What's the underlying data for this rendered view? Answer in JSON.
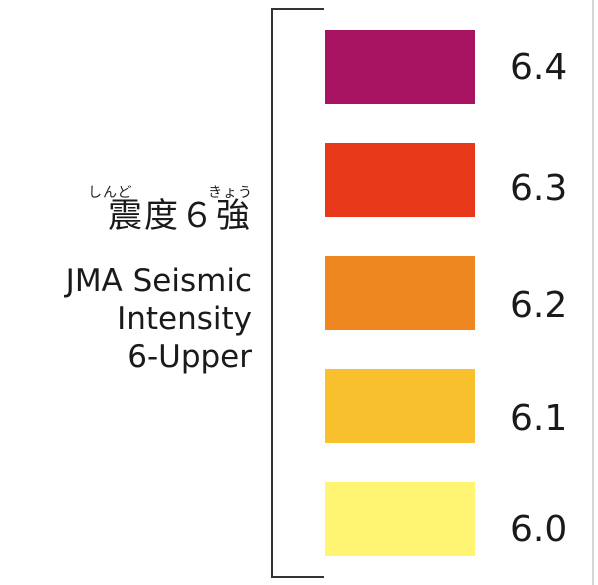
{
  "label": {
    "ruby_left": "しんど",
    "ruby_right": "きょう",
    "kanji": "震度６強",
    "english_lines": [
      "JMA Seismic",
      "Intensity",
      "6-Upper"
    ]
  },
  "scale": [
    {
      "value": "6.4",
      "color": "#A91462"
    },
    {
      "value": "6.3",
      "color": "#E8381A"
    },
    {
      "value": "6.2",
      "color": "#EF8720"
    },
    {
      "value": "6.1",
      "color": "#F8C02D"
    },
    {
      "value": "6.0",
      "color": "#FFF573"
    }
  ],
  "colors": {
    "text": "#1a1a1a",
    "bracket": "#333333",
    "edge": "#d6d6d6"
  }
}
